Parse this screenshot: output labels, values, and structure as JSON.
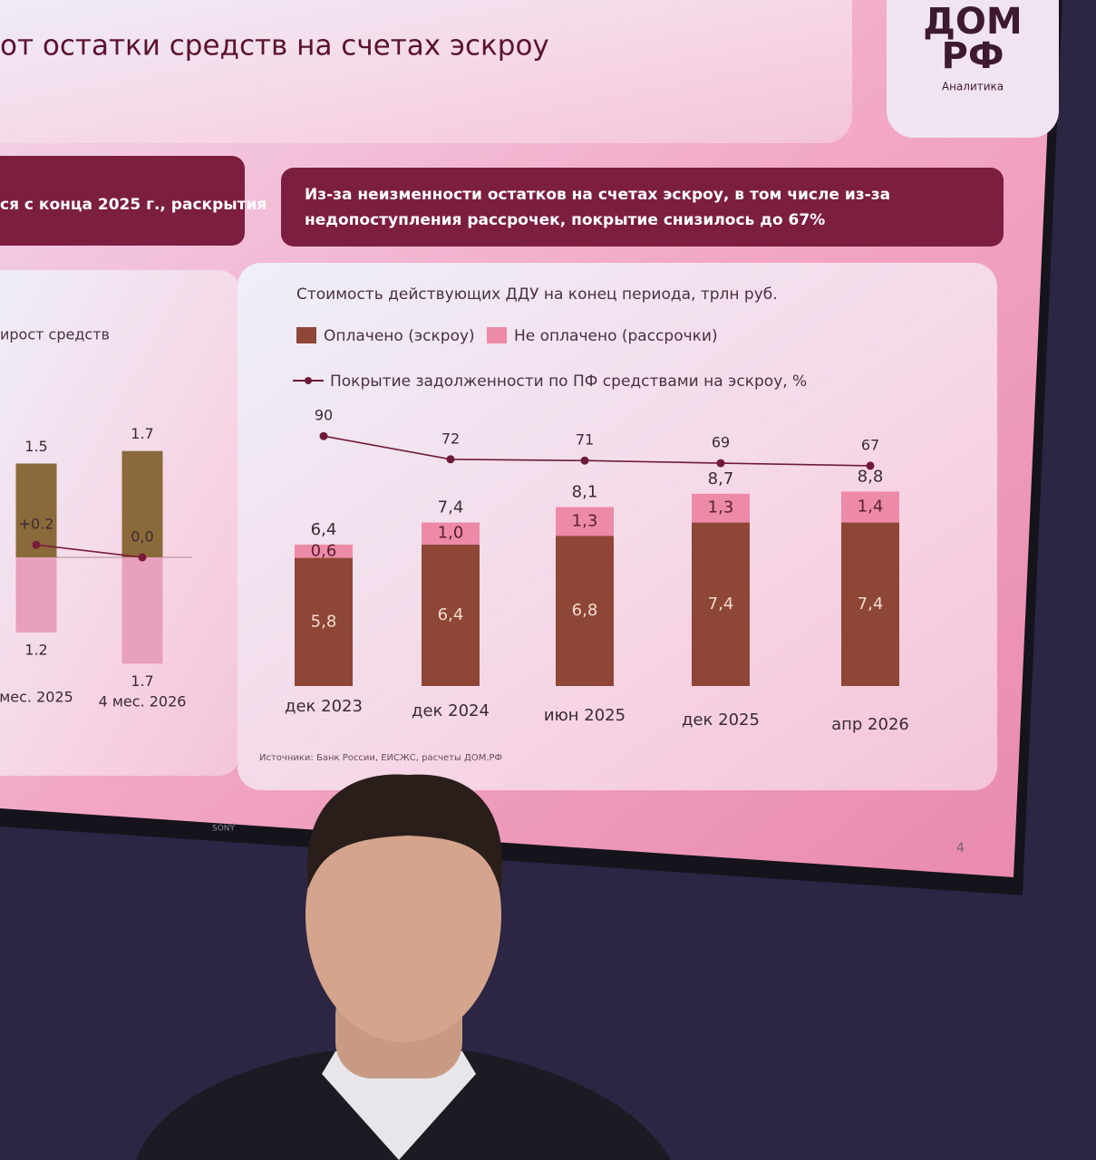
{
  "title": "от остатки средств на счетах эскроу",
  "logo": {
    "line1": "ДОМ",
    "line2": "РФ",
    "caption": "Аналитика"
  },
  "left_banner": "ся с конца 2025 г., раскрытия",
  "right_banner": [
    "Из-за неизменности остатков на счетах эскроу, в том числе из-за",
    "недопоступления рассрочек, покрытие снизилось до 67%"
  ],
  "chart_data": [
    {
      "type": "bar",
      "legend_text": "ирост средств",
      "categories": [
        "мес. 2025",
        "4 мес. 2026"
      ],
      "ylim": [
        -2,
        2
      ],
      "series": [
        {
          "color": "#8a6a3a",
          "values": [
            1.5,
            1.7
          ]
        },
        {
          "color": "#e8a0bc",
          "values": [
            -1.2,
            -1.7
          ],
          "value_labels": [
            "1.2",
            "1.7"
          ]
        },
        {
          "mark": "line",
          "color": "#7a1a3a",
          "values": [
            0.2,
            0.0
          ],
          "value_labels": [
            "+0.2",
            "0,0"
          ]
        }
      ]
    },
    {
      "type": "bar",
      "title": "Стоимость действующих ДДУ на конец периода, трлн руб.",
      "categories": [
        "дек 2023",
        "дек 2024",
        "июн 2025",
        "дек 2025",
        "апр 2026"
      ],
      "ylim": [
        0,
        13
      ],
      "y2lim": [
        -104,
        119
      ],
      "series": [
        {
          "name": "Оплачено (эскроу)",
          "color": "#8e4636",
          "values": [
            5.8,
            6.4,
            6.8,
            7.4,
            7.4
          ],
          "value_labels": [
            "5,8",
            "6,4",
            "6,8",
            "7,4",
            "7,4"
          ]
        },
        {
          "name": "Не оплачено (рассрочки)",
          "color": "#ec8aa8",
          "values": [
            0.6,
            1.0,
            1.3,
            1.3,
            1.4
          ],
          "value_labels": [
            "0,6",
            "1,0",
            "1,3",
            "1,3",
            "1,4"
          ]
        },
        {
          "name": "Покрытие задолженности по ПФ средствами на эскроу, %",
          "mark": "line",
          "axis": "y2",
          "color": "#6e1a36",
          "values": [
            90,
            72,
            71,
            69,
            67
          ]
        }
      ],
      "totals": [
        6.4,
        7.4,
        8.1,
        8.7,
        8.8
      ],
      "total_labels": [
        "6,4",
        "7,4",
        "8,1",
        "8,7",
        "8,8"
      ]
    }
  ],
  "source": "Источники: Банк России, ЕИСЖС, расчеты ДОМ.РФ",
  "page_number": "4",
  "tv_brand": "SONY"
}
